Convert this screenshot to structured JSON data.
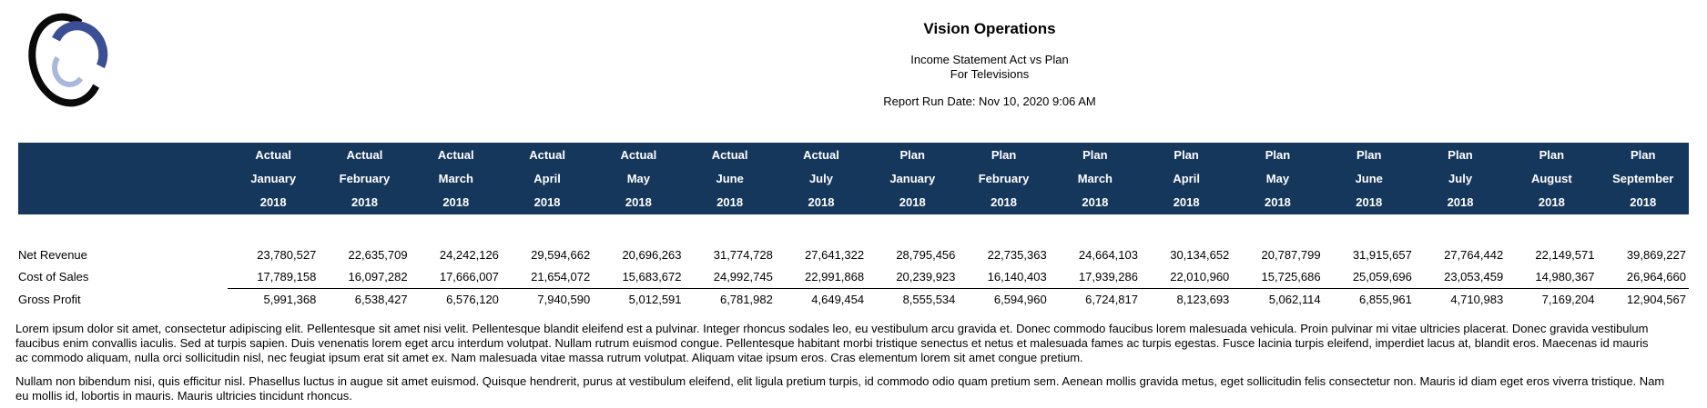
{
  "colors": {
    "header_band": "#16375C",
    "header_text": "#FFFFFF",
    "logo_black": "#0A0A0A",
    "logo_blue": "#3D4F94",
    "logo_light": "#A9B7DA"
  },
  "report": {
    "title": "Vision Operations",
    "subtitle_line1": "Income Statement Act vs Plan",
    "subtitle_line2": "For Televisions",
    "run_date": "Report Run Date: Nov 10, 2020 9:06 AM"
  },
  "table": {
    "row_header_label": "",
    "columns": [
      {
        "scenario": "Actual",
        "month": "January",
        "year": "2018"
      },
      {
        "scenario": "Actual",
        "month": "February",
        "year": "2018"
      },
      {
        "scenario": "Actual",
        "month": "March",
        "year": "2018"
      },
      {
        "scenario": "Actual",
        "month": "April",
        "year": "2018"
      },
      {
        "scenario": "Actual",
        "month": "May",
        "year": "2018"
      },
      {
        "scenario": "Actual",
        "month": "June",
        "year": "2018"
      },
      {
        "scenario": "Actual",
        "month": "July",
        "year": "2018"
      },
      {
        "scenario": "Plan",
        "month": "January",
        "year": "2018"
      },
      {
        "scenario": "Plan",
        "month": "February",
        "year": "2018"
      },
      {
        "scenario": "Plan",
        "month": "March",
        "year": "2018"
      },
      {
        "scenario": "Plan",
        "month": "April",
        "year": "2018"
      },
      {
        "scenario": "Plan",
        "month": "May",
        "year": "2018"
      },
      {
        "scenario": "Plan",
        "month": "June",
        "year": "2018"
      },
      {
        "scenario": "Plan",
        "month": "July",
        "year": "2018"
      },
      {
        "scenario": "Plan",
        "month": "August",
        "year": "2018"
      },
      {
        "scenario": "Plan",
        "month": "September",
        "year": "2018"
      }
    ],
    "rows": [
      {
        "label": "Net Revenue",
        "overline": false,
        "values": [
          "23,780,527",
          "22,635,709",
          "24,242,126",
          "29,594,662",
          "20,696,263",
          "31,774,728",
          "27,641,322",
          "28,795,456",
          "22,735,363",
          "24,664,103",
          "30,134,652",
          "20,787,799",
          "31,915,657",
          "27,764,442",
          "22,149,571",
          "39,869,227"
        ]
      },
      {
        "label": "Cost of Sales",
        "overline": false,
        "values": [
          "17,789,158",
          "16,097,282",
          "17,666,007",
          "21,654,072",
          "15,683,672",
          "24,992,745",
          "22,991,868",
          "20,239,923",
          "16,140,403",
          "17,939,286",
          "22,010,960",
          "15,725,686",
          "25,059,696",
          "23,053,459",
          "14,980,367",
          "26,964,660"
        ]
      },
      {
        "label": "Gross Profit",
        "overline": true,
        "values": [
          "5,991,368",
          "6,538,427",
          "6,576,120",
          "7,940,590",
          "5,012,591",
          "6,781,982",
          "4,649,454",
          "8,555,534",
          "6,594,960",
          "6,724,817",
          "8,123,693",
          "5,062,114",
          "6,855,961",
          "4,710,983",
          "7,169,204",
          "12,904,567"
        ]
      }
    ]
  },
  "paragraphs": [
    {
      "lines": [
        "Lorem ipsum dolor sit amet, consectetur adipiscing elit. Pellentesque sit amet nisi velit. Pellentesque blandit eleifend est a pulvinar. Integer rhoncus sodales leo, eu vestibulum arcu gravida et. Donec commodo faucibus lorem malesuada vehicula. Proin pulvinar mi vitae ultricies placerat. Donec gravida vestibulum",
        "faucibus enim convallis iaculis. Sed at turpis sapien. Duis venenatis lorem eget arcu interdum volutpat. Nullam rutrum euismod congue. Pellentesque habitant morbi tristique senectus et netus et malesuada fames ac turpis egestas. Fusce lacinia turpis eleifend, imperdiet lacus at, blandit eros. Maecenas id mauris",
        "ac commodo aliquam, nulla orci sollicitudin nisl, nec feugiat ipsum erat sit amet ex. Nam malesuada vitae massa rutrum volutpat. Aliquam vitae ipsum eros. Cras elementum lorem sit amet congue pretium."
      ]
    },
    {
      "lines": [
        "Nullam non bibendum nisi, quis efficitur nisl. Phasellus luctus in augue sit amet euismod. Quisque hendrerit, purus at vestibulum eleifend, elit ligula pretium turpis, id commodo odio quam pretium sem. Aenean mollis gravida metus, eget sollicitudin felis consectetur non. Mauris id diam eget eros viverra tristique. Nam",
        "eu mollis id, lobortis in mauris. Mauris ultricies tincidunt rhoncus."
      ]
    }
  ]
}
